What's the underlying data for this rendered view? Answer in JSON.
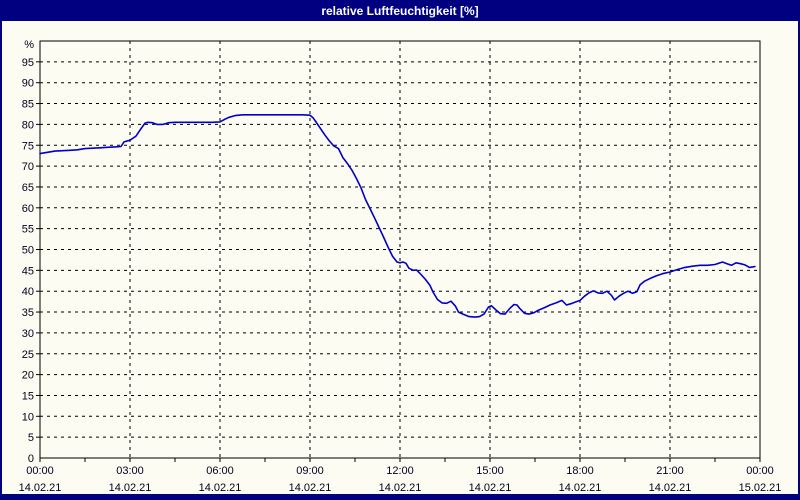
{
  "window": {
    "title": "relative Luftfeuchtigkeit [%]",
    "titlebar_color": "#000080",
    "background_color": "#fcfcf2",
    "border_color": "#000080",
    "text_color": "#000020"
  },
  "chart_data": {
    "type": "line",
    "title": "relative Luftfeuchtigkeit [%]",
    "xlabel": "",
    "ylabel": "%",
    "y_axis_unit_label": "%",
    "ylim": [
      0,
      100
    ],
    "y_ticks": [
      0,
      5,
      10,
      15,
      20,
      25,
      30,
      35,
      40,
      45,
      50,
      55,
      60,
      65,
      70,
      75,
      80,
      85,
      90,
      95
    ],
    "xlim_hours": [
      0,
      24
    ],
    "x_minor_tick_step_hours": 1.5,
    "grid": "dashed-black",
    "legend_position": "none",
    "x_ticks": [
      {
        "hour": 0,
        "time": "00:00",
        "date": "14.02.21"
      },
      {
        "hour": 3,
        "time": "03:00",
        "date": "14.02.21"
      },
      {
        "hour": 6,
        "time": "06:00",
        "date": "14.02.21"
      },
      {
        "hour": 9,
        "time": "09:00",
        "date": "14.02.21"
      },
      {
        "hour": 12,
        "time": "12:00",
        "date": "14.02.21"
      },
      {
        "hour": 15,
        "time": "15:00",
        "date": "14.02.21"
      },
      {
        "hour": 18,
        "time": "18:00",
        "date": "14.02.21"
      },
      {
        "hour": 21,
        "time": "21:00",
        "date": "14.02.21"
      },
      {
        "hour": 24,
        "time": "00:00",
        "date": "15.02.21"
      }
    ],
    "series": [
      {
        "name": "relative Luftfeuchtigkeit",
        "color": "#0000C8",
        "points": [
          [
            0,
            73.0
          ],
          [
            0.25,
            73.3
          ],
          [
            0.5,
            73.6
          ],
          [
            0.75,
            73.7
          ],
          [
            1.0,
            73.8
          ],
          [
            1.25,
            73.9
          ],
          [
            1.5,
            74.2
          ],
          [
            1.75,
            74.3
          ],
          [
            2.0,
            74.4
          ],
          [
            2.25,
            74.5
          ],
          [
            2.5,
            74.6
          ],
          [
            2.7,
            74.7
          ],
          [
            2.8,
            75.8
          ],
          [
            3.0,
            76.2
          ],
          [
            3.2,
            77.2
          ],
          [
            3.35,
            78.8
          ],
          [
            3.5,
            80.3
          ],
          [
            3.6,
            80.5
          ],
          [
            3.75,
            80.4
          ],
          [
            3.9,
            80.0
          ],
          [
            4.1,
            80.0
          ],
          [
            4.3,
            80.4
          ],
          [
            4.5,
            80.5
          ],
          [
            4.75,
            80.5
          ],
          [
            5.0,
            80.5
          ],
          [
            5.25,
            80.5
          ],
          [
            5.5,
            80.5
          ],
          [
            5.75,
            80.5
          ],
          [
            6.0,
            80.6
          ],
          [
            6.15,
            81.2
          ],
          [
            6.3,
            81.7
          ],
          [
            6.5,
            82.1
          ],
          [
            6.75,
            82.3
          ],
          [
            7.0,
            82.3
          ],
          [
            7.25,
            82.3
          ],
          [
            7.5,
            82.3
          ],
          [
            7.75,
            82.3
          ],
          [
            8.0,
            82.3
          ],
          [
            8.25,
            82.3
          ],
          [
            8.5,
            82.3
          ],
          [
            8.75,
            82.3
          ],
          [
            9.0,
            82.2
          ],
          [
            9.1,
            81.6
          ],
          [
            9.2,
            80.6
          ],
          [
            9.35,
            79.0
          ],
          [
            9.5,
            77.4
          ],
          [
            9.65,
            76.0
          ],
          [
            9.8,
            74.8
          ],
          [
            9.95,
            74.2
          ],
          [
            10.1,
            72.0
          ],
          [
            10.25,
            70.6
          ],
          [
            10.4,
            69.0
          ],
          [
            10.55,
            67.0
          ],
          [
            10.7,
            64.8
          ],
          [
            10.85,
            62.0
          ],
          [
            11.0,
            59.8
          ],
          [
            11.15,
            57.6
          ],
          [
            11.3,
            55.3
          ],
          [
            11.45,
            53.0
          ],
          [
            11.6,
            50.6
          ],
          [
            11.75,
            48.4
          ],
          [
            11.9,
            47.0
          ],
          [
            12.0,
            46.8
          ],
          [
            12.1,
            47.0
          ],
          [
            12.2,
            46.7
          ],
          [
            12.3,
            45.5
          ],
          [
            12.45,
            45.0
          ],
          [
            12.55,
            45.1
          ],
          [
            12.7,
            44.0
          ],
          [
            12.85,
            42.8
          ],
          [
            13.0,
            41.4
          ],
          [
            13.1,
            39.8
          ],
          [
            13.25,
            38.0
          ],
          [
            13.4,
            37.2
          ],
          [
            13.55,
            37.1
          ],
          [
            13.7,
            37.6
          ],
          [
            13.85,
            36.4
          ],
          [
            13.95,
            35.0
          ],
          [
            14.1,
            34.5
          ],
          [
            14.3,
            33.9
          ],
          [
            14.5,
            33.8
          ],
          [
            14.65,
            33.9
          ],
          [
            14.8,
            34.5
          ],
          [
            14.95,
            36.2
          ],
          [
            15.05,
            36.5
          ],
          [
            15.2,
            35.5
          ],
          [
            15.35,
            34.6
          ],
          [
            15.5,
            34.5
          ],
          [
            15.65,
            35.8
          ],
          [
            15.8,
            36.8
          ],
          [
            15.9,
            36.7
          ],
          [
            16.0,
            35.8
          ],
          [
            16.15,
            34.7
          ],
          [
            16.3,
            34.5
          ],
          [
            16.45,
            34.8
          ],
          [
            16.6,
            35.4
          ],
          [
            16.8,
            36.0
          ],
          [
            17.0,
            36.7
          ],
          [
            17.2,
            37.2
          ],
          [
            17.4,
            37.8
          ],
          [
            17.55,
            36.7
          ],
          [
            17.7,
            37.0
          ],
          [
            17.85,
            37.4
          ],
          [
            18.0,
            37.8
          ],
          [
            18.15,
            38.8
          ],
          [
            18.3,
            39.6
          ],
          [
            18.45,
            40.1
          ],
          [
            18.6,
            39.6
          ],
          [
            18.75,
            39.5
          ],
          [
            18.9,
            40.0
          ],
          [
            19.05,
            39.0
          ],
          [
            19.15,
            37.9
          ],
          [
            19.3,
            38.8
          ],
          [
            19.45,
            39.5
          ],
          [
            19.6,
            40.0
          ],
          [
            19.75,
            39.5
          ],
          [
            19.9,
            39.9
          ],
          [
            20.0,
            41.5
          ],
          [
            20.15,
            42.4
          ],
          [
            20.35,
            43.1
          ],
          [
            20.55,
            43.7
          ],
          [
            20.75,
            44.2
          ],
          [
            21.0,
            44.6
          ],
          [
            21.25,
            45.2
          ],
          [
            21.5,
            45.7
          ],
          [
            21.75,
            46.0
          ],
          [
            22.0,
            46.2
          ],
          [
            22.25,
            46.2
          ],
          [
            22.5,
            46.4
          ],
          [
            22.75,
            47.0
          ],
          [
            22.9,
            46.6
          ],
          [
            23.05,
            46.2
          ],
          [
            23.2,
            46.8
          ],
          [
            23.35,
            46.6
          ],
          [
            23.5,
            46.3
          ],
          [
            23.65,
            45.7
          ],
          [
            23.83,
            45.9
          ]
        ]
      }
    ]
  }
}
